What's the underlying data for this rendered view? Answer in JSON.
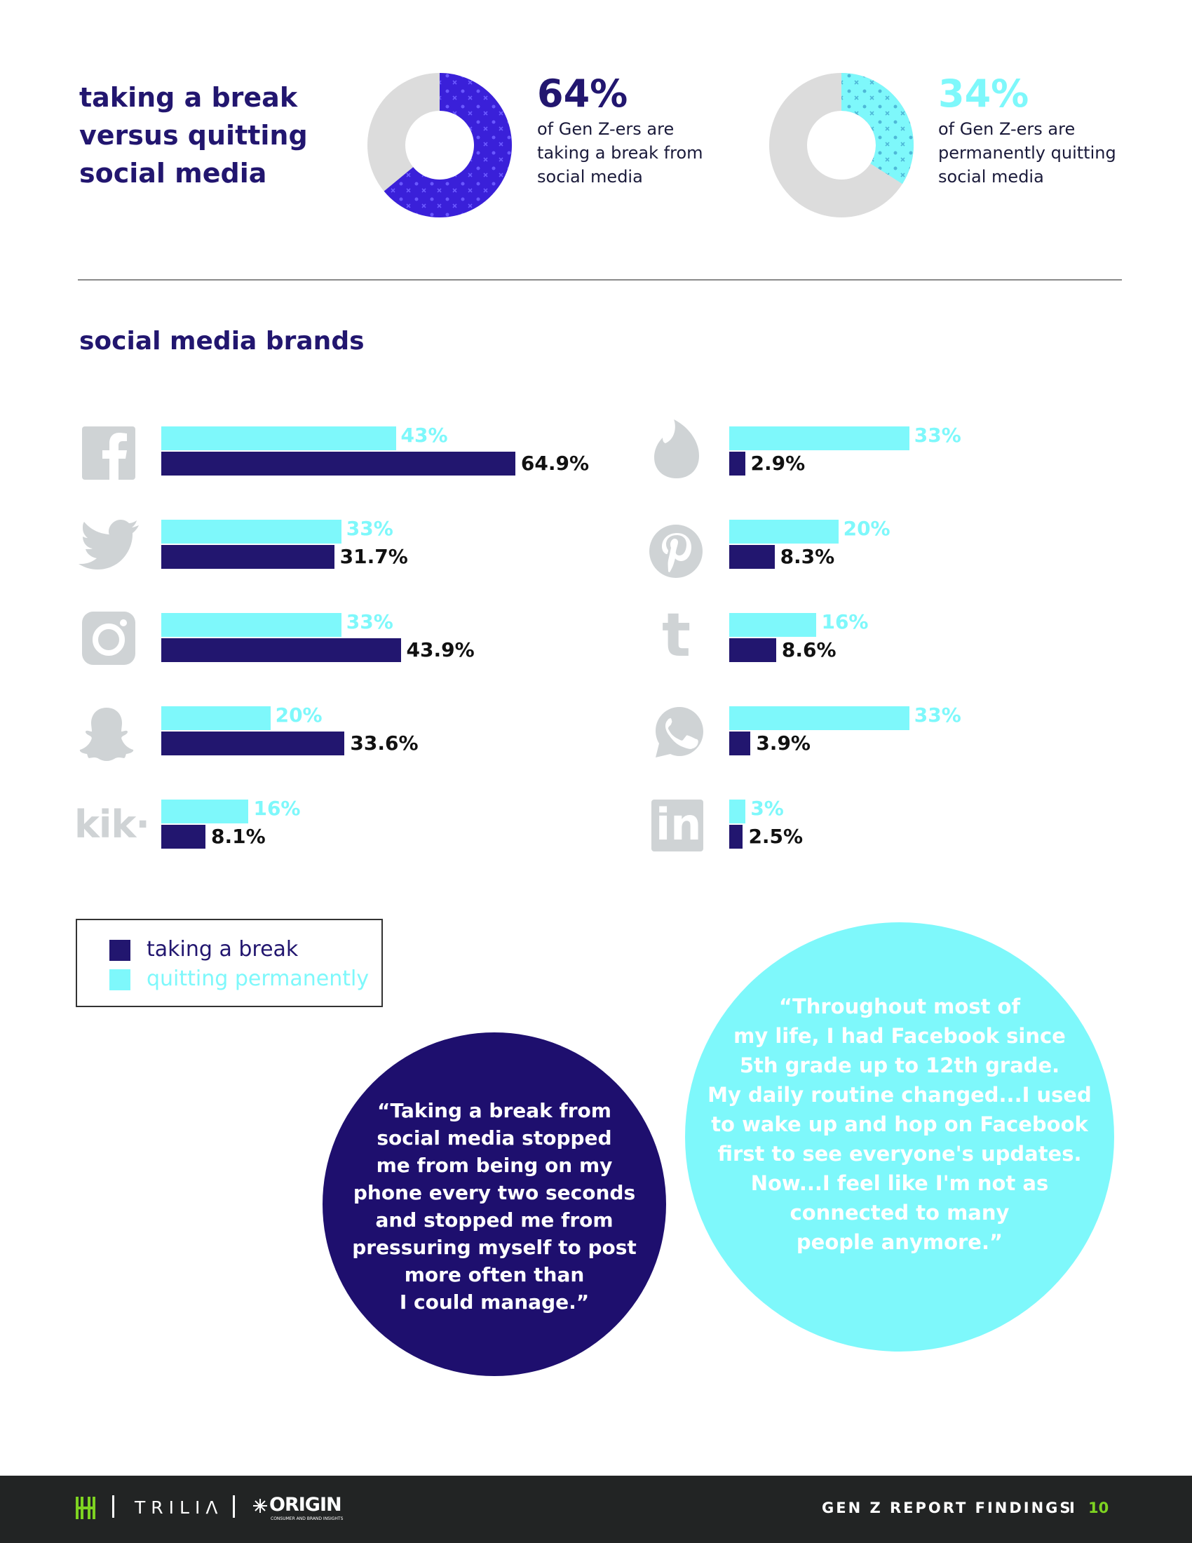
{
  "header": {
    "title_line1": "taking a break",
    "title_line2": "versus quitting",
    "title_line3": "social media"
  },
  "donuts": [
    {
      "value": 64,
      "pct_text": "64%",
      "desc_line1": "of Gen Z-ers are",
      "desc_line2": "taking a break from",
      "desc_line3": "social media",
      "color": "#3a20d9"
    },
    {
      "value": 34,
      "pct_text": "34%",
      "desc_line1": "of Gen Z-ers are",
      "desc_line2": "permanently quitting",
      "desc_line3": "social media",
      "color": "#7ef8fb"
    }
  ],
  "brands_title": "social media brands",
  "chart_data": {
    "type": "bar",
    "orientation": "horizontal",
    "categories": [
      "Facebook",
      "Twitter",
      "Instagram",
      "Snapchat",
      "Kik",
      "Tinder",
      "Pinterest",
      "Tumblr",
      "WhatsApp",
      "LinkedIn"
    ],
    "series": [
      {
        "name": "quitting permanently",
        "color": "#7ef8fb",
        "values": [
          43,
          33,
          33,
          20,
          16,
          33,
          20,
          16,
          33,
          3
        ],
        "labels": [
          "43%",
          "33%",
          "33%",
          "20%",
          "16%",
          "33%",
          "20%",
          "16%",
          "33%",
          "3%"
        ]
      },
      {
        "name": "taking a break",
        "color": "#22166f",
        "values": [
          64.9,
          31.7,
          43.9,
          33.6,
          8.1,
          2.9,
          8.3,
          8.6,
          3.9,
          2.5
        ],
        "labels": [
          "64.9%",
          "31.7%",
          "43.9%",
          "33.6%",
          "8.1%",
          "2.9%",
          "8.3%",
          "8.6%",
          "3.9%",
          "2.5%"
        ]
      }
    ],
    "legend_position": "bottom-left"
  },
  "icons": [
    "facebook-icon",
    "twitter-icon",
    "instagram-icon",
    "snapchat-icon",
    "kik-icon",
    "tinder-icon",
    "pinterest-icon",
    "tumblr-icon",
    "whatsapp-icon",
    "linkedin-icon"
  ],
  "icon_text": {
    "facebook": "f",
    "tumblr": "t",
    "linkedin": "in",
    "kik": "kik·"
  },
  "legend": {
    "break_label": "taking a break",
    "quit_label": "quitting permanently"
  },
  "quotes": {
    "dark": "“Taking a break from\nsocial media stopped\nme from being on my\nphone every two seconds\nand stopped me from\npressuring myself to post\nmore often than\nI could manage.”",
    "light": "“Throughout most of\nmy life, I had Facebook since\n5th grade up to 12th grade.\nMy daily routine changed...I used\nto wake up and hop on Facebook\nfirst to see everyone's updates.\nNow...I feel like I'm not as\nconnected to many\npeople anymore.”"
  },
  "footer": {
    "brand1": "TRILIΛ",
    "brand2": "ORIGIN",
    "brand2_sub": "CONSUMER AND BRAND INSIGHTS",
    "report": "GEN Z REPORT FINDINGS",
    "separator": "I",
    "page": "10"
  },
  "colors": {
    "navy": "#22166f",
    "cyan": "#7ef8fb",
    "icon_gray": "#cfd3d5",
    "footer_bg": "#222424",
    "accent_green": "#7ed321"
  }
}
